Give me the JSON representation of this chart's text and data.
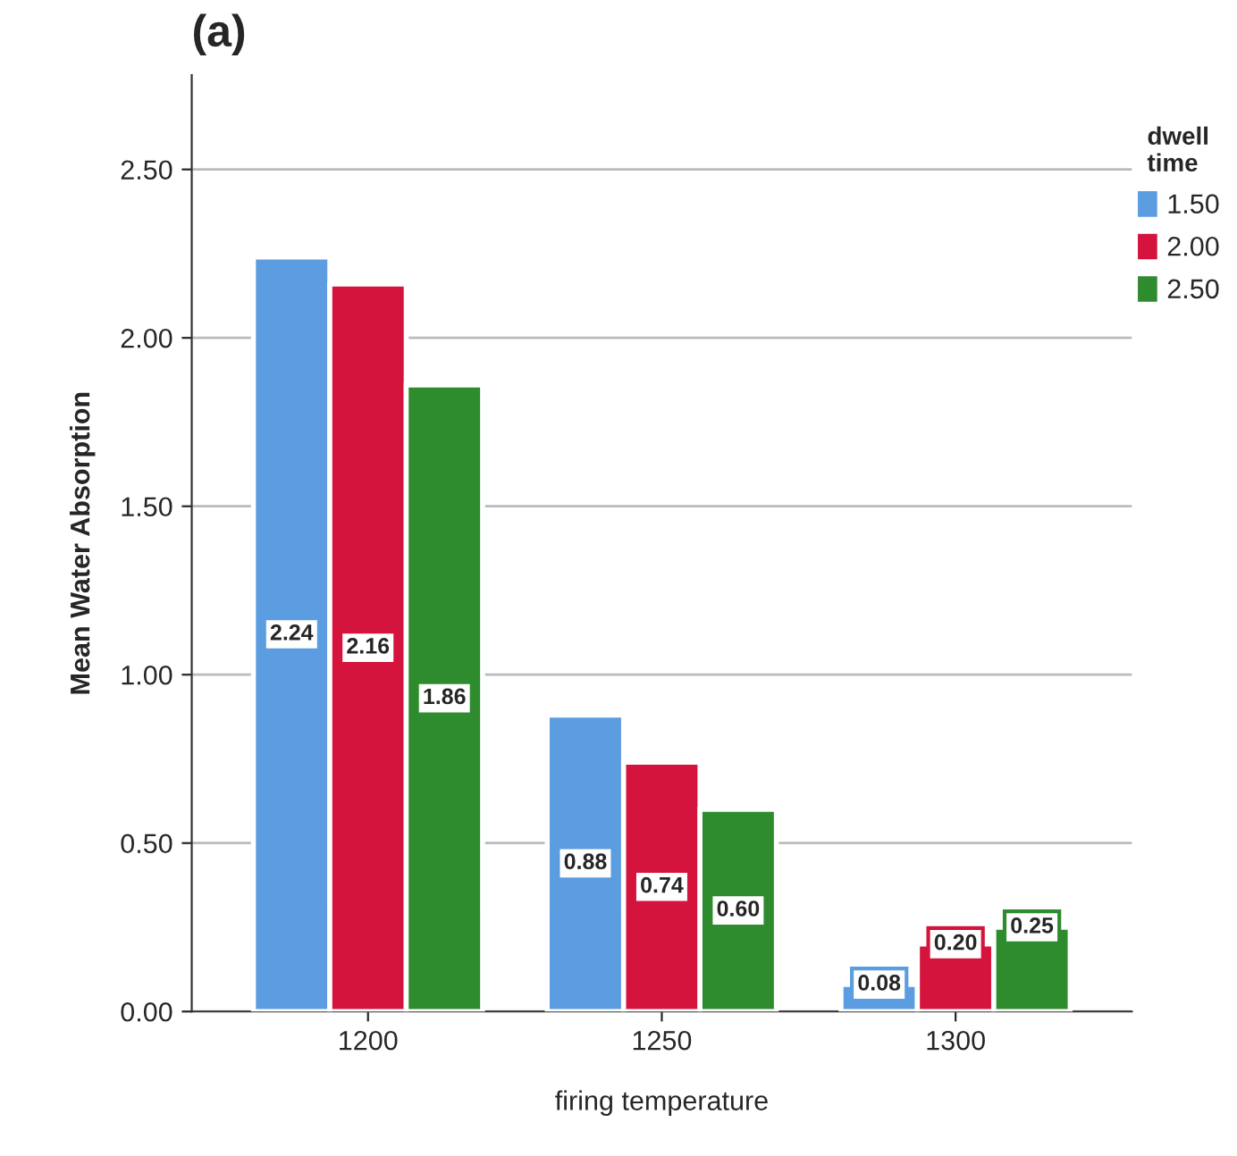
{
  "chart_data": {
    "type": "bar",
    "title": "(a)",
    "xlabel": "firing temperature",
    "ylabel": "Mean Water Absorption",
    "legend_title": "dwell\ntime",
    "categories": [
      "1200",
      "1250",
      "1300"
    ],
    "series": [
      {
        "name": "1.50",
        "color": "#5b9de0",
        "values": [
          2.24,
          0.88,
          0.08
        ],
        "value_labels": [
          "2.24",
          "0.88",
          "0.08"
        ]
      },
      {
        "name": "2.00",
        "color": "#d4143c",
        "values": [
          2.16,
          0.74,
          0.2
        ],
        "value_labels": [
          "2.16",
          "0.74",
          "0.20"
        ]
      },
      {
        "name": "2.50",
        "color": "#2e8b2e",
        "values": [
          1.86,
          0.6,
          0.25
        ],
        "value_labels": [
          "1.86",
          "0.60",
          "0.25"
        ]
      }
    ],
    "ylim": [
      0,
      2.78
    ],
    "yticks": [
      {
        "value": 0,
        "label": "0.00"
      },
      {
        "value": 0.5,
        "label": "0.50"
      },
      {
        "value": 1,
        "label": "1.00"
      },
      {
        "value": 1.5,
        "label": "1.50"
      },
      {
        "value": 2,
        "label": "2.00"
      },
      {
        "value": 2.5,
        "label": "2.50"
      }
    ],
    "grid": "y",
    "legend": "top right"
  }
}
